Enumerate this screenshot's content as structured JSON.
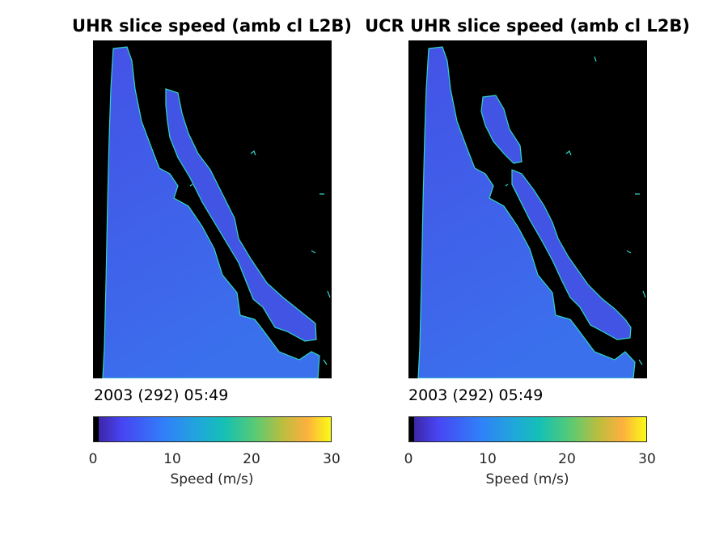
{
  "panels": [
    {
      "title": "UHR slice speed (amb cl L2B)",
      "timestamp": "2003 (292) 05:49",
      "colorbar": {
        "label": "Speed (m/s)",
        "ticks": [
          "0",
          "10",
          "20",
          "30"
        ],
        "range": [
          0,
          30
        ]
      }
    },
    {
      "title": "UCR UHR slice speed (amb cl L2B)",
      "timestamp": "2003 (292) 05:49",
      "colorbar": {
        "label": "Speed (m/s)",
        "ticks": [
          "0",
          "10",
          "20",
          "30"
        ],
        "range": [
          0,
          30
        ]
      }
    }
  ],
  "colors": {
    "background_land": "#000000",
    "ocean_low": "#3e4fe0",
    "ocean_mid": "#2f7fe8",
    "coastline": "#2fd6c8",
    "colormap": [
      "#000000",
      "#3d26a8",
      "#4745f3",
      "#3080f9",
      "#1fa9d8",
      "#14c0b5",
      "#59ca73",
      "#bdbd3e",
      "#fdb03e",
      "#f9fb15"
    ]
  }
}
